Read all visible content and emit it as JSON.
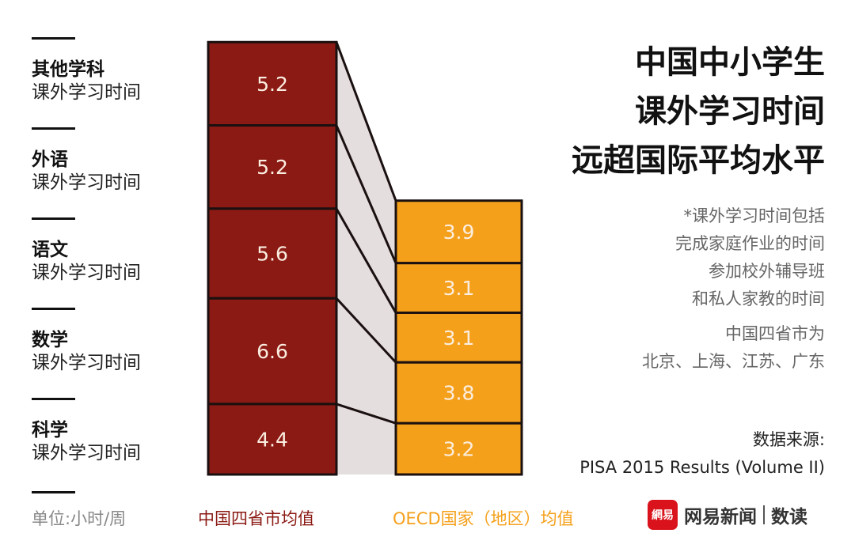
{
  "title_lines": [
    "中国中小学生",
    "课外学习时间",
    "远超国际平均水平"
  ],
  "note_lines": [
    "*课外学习时间包括",
    "完成家庭作业的时间",
    "参加校外辅导班",
    "和私人家教的时间"
  ],
  "region_lines": [
    "中国四省市为",
    "北京、上海、江苏、广东"
  ],
  "source_lines": [
    "数据来源:",
    "PISA 2015 Results (Volume II)"
  ],
  "unit_label": "单位:小时/周",
  "brand": {
    "logo_text": "網易",
    "name": "网易新闻",
    "sub": "数读"
  },
  "colors": {
    "china": "#8b1a14",
    "oecd": "#f5a01a",
    "connector": "#e5dede"
  },
  "chart_data": {
    "type": "bar",
    "stacked": true,
    "title": "中国中小学生课外学习时间远超国际平均水平",
    "unit": "小时/周",
    "categories": [
      {
        "subject": "其他学科",
        "suffix": "课外学习时间"
      },
      {
        "subject": "外语",
        "suffix": "课外学习时间"
      },
      {
        "subject": "语文",
        "suffix": "课外学习时间"
      },
      {
        "subject": "数学",
        "suffix": "课外学习时间"
      },
      {
        "subject": "科学",
        "suffix": "课外学习时间"
      }
    ],
    "series": [
      {
        "name": "中国四省市均值",
        "values": [
          5.2,
          5.2,
          5.6,
          6.6,
          4.4
        ]
      },
      {
        "name": "OECD国家（地区）均值",
        "values": [
          3.9,
          3.1,
          3.1,
          3.8,
          3.2
        ]
      }
    ]
  }
}
